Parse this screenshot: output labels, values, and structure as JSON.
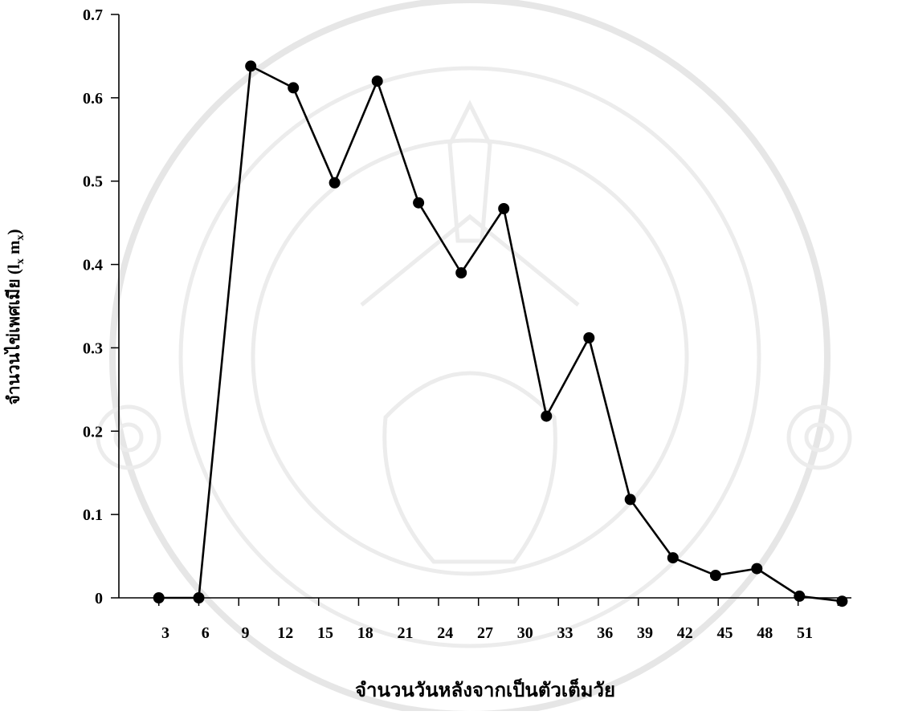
{
  "chart_data": {
    "type": "line",
    "title": "",
    "xlabel": "จำนวนวันหลังจากเป็นตัวเต็มวัย",
    "ylabel_main": "จำนวนไข่เพศเมีย (l",
    "ylabel_sub1": "x",
    "ylabel_mid": " m",
    "ylabel_sub2": "x",
    "ylabel_end": ")",
    "xlim": [
      0,
      55
    ],
    "ylim": [
      0,
      0.7
    ],
    "xticks": [
      3,
      6,
      9,
      12,
      15,
      18,
      21,
      24,
      27,
      30,
      33,
      36,
      39,
      42,
      45,
      48,
      51
    ],
    "yticks": [
      0,
      0.1,
      0.2,
      0.3,
      0.4,
      0.5,
      0.6,
      0.7
    ],
    "ytick_labels": [
      "0",
      "0.1",
      "0.2",
      "0.3",
      "0.4",
      "0.5",
      "0.6",
      "0.7"
    ],
    "grid": false,
    "legend": "none",
    "series": [
      {
        "x": [
          3,
          6,
          9.9,
          13.1,
          16.2,
          19.4,
          22.5,
          25.7,
          28.9,
          32.1,
          35.3,
          38.4,
          41.6,
          44.8,
          47.9,
          51.1,
          54.3
        ],
        "y": [
          0.0,
          0.0,
          0.638,
          0.612,
          0.498,
          0.62,
          0.474,
          0.39,
          0.467,
          0.218,
          0.312,
          0.118,
          0.048,
          0.027,
          0.035,
          0.002,
          -0.004
        ],
        "color": "#000000"
      }
    ]
  },
  "watermark": {
    "present": true,
    "icon": "university-seal-watermark",
    "color": "#e6e6e6"
  }
}
